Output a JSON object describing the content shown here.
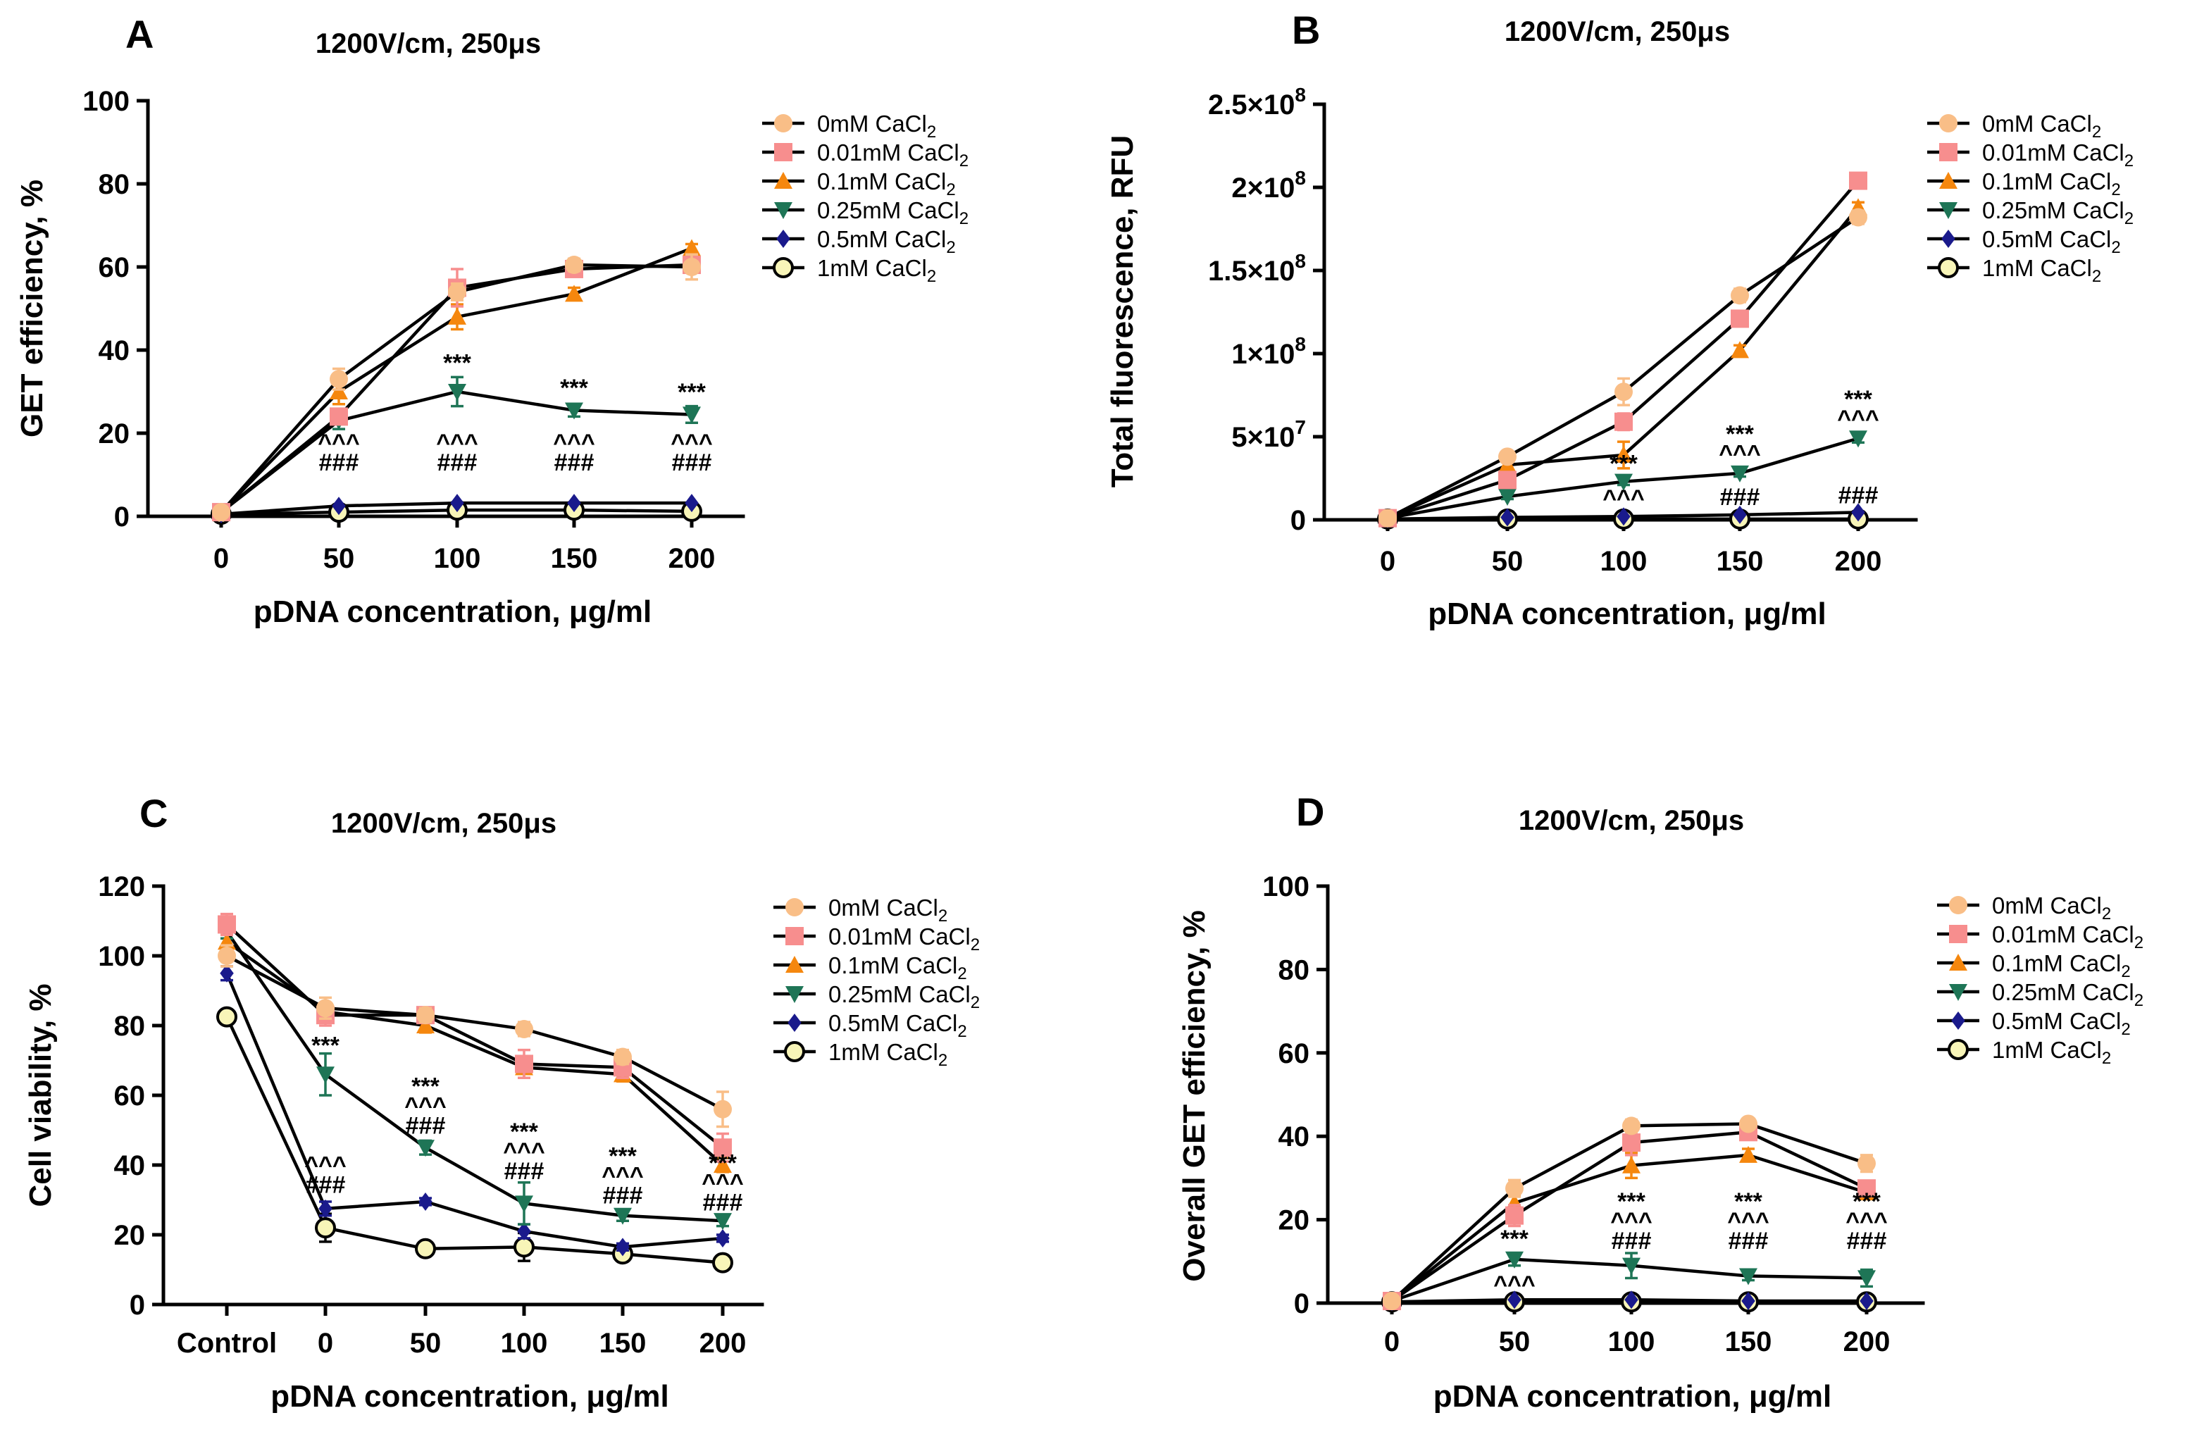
{
  "legend": [
    {
      "label": "0mM CaCl",
      "sub": "2",
      "color": "#F9BE87",
      "marker": "circle"
    },
    {
      "label": "0.01mM CaCl",
      "sub": "2",
      "color": "#F78E8E",
      "marker": "square"
    },
    {
      "label": "0.1mM CaCl",
      "sub": "2",
      "color": "#F5870E",
      "marker": "triangle-up"
    },
    {
      "label": "0.25mM CaCl",
      "sub": "2",
      "color": "#1E7556",
      "marker": "triangle-down"
    },
    {
      "label": "0.5mM CaCl",
      "sub": "2",
      "color": "#1A1A8C",
      "marker": "diamond"
    },
    {
      "label": "1mM CaCl",
      "sub": "2",
      "color": "#F8F5B8",
      "marker": "circle-open"
    }
  ],
  "chart_data": [
    {
      "panel": "A",
      "type": "line",
      "title": "1200V/cm, 250μs",
      "xlabel": "pDNA concentration, μg/ml",
      "ylabel": "GET efficiency, %",
      "categories": [
        "0",
        "50",
        "100",
        "150",
        "200"
      ],
      "yticks": [
        {
          "v": 0,
          "label": "0"
        },
        {
          "v": 20,
          "label": "20"
        },
        {
          "v": 40,
          "label": "40"
        },
        {
          "v": 60,
          "label": "60"
        },
        {
          "v": 80,
          "label": "80"
        },
        {
          "v": 100,
          "label": "100"
        }
      ],
      "ylim": [
        0,
        100
      ],
      "series": [
        {
          "name": "0mM CaCl2",
          "values": [
            1,
            33,
            54,
            60.5,
            60
          ],
          "errors": [
            0.5,
            2.5,
            2,
            1.5,
            3
          ]
        },
        {
          "name": "0.01mM CaCl2",
          "values": [
            1,
            24,
            55,
            59.5,
            60.5
          ],
          "errors": [
            0.5,
            1.5,
            4.5,
            1.5,
            1.5
          ]
        },
        {
          "name": "0.1mM CaCl2",
          "values": [
            1,
            30,
            48,
            53.5,
            64.5
          ],
          "errors": [
            0.5,
            3,
            3,
            1.5,
            1
          ]
        },
        {
          "name": "0.25mM CaCl2",
          "values": [
            1,
            23,
            30,
            25.5,
            24.5
          ],
          "errors": [
            0.5,
            2,
            3.5,
            1.5,
            2
          ]
        },
        {
          "name": "0.5mM CaCl2",
          "values": [
            0.5,
            2.5,
            3.2,
            3.2,
            3.2
          ],
          "errors": [
            0,
            0,
            0,
            0,
            0
          ]
        },
        {
          "name": "1mM CaCl2",
          "values": [
            0.5,
            1,
            1.5,
            1.5,
            1.2
          ],
          "errors": [
            0,
            0,
            0,
            0,
            0
          ]
        }
      ],
      "annotations": [
        {
          "cat": 1,
          "lines": [
            "^^^",
            "###"
          ],
          "base": 11
        },
        {
          "cat": 2,
          "lines": [
            "***"
          ],
          "base": 35
        },
        {
          "cat": 2,
          "lines": [
            "^^^",
            "###"
          ],
          "base": 11
        },
        {
          "cat": 3,
          "lines": [
            "***"
          ],
          "base": 29
        },
        {
          "cat": 3,
          "lines": [
            "^^^",
            "###"
          ],
          "base": 11
        },
        {
          "cat": 4,
          "lines": [
            "***"
          ],
          "base": 28
        },
        {
          "cat": 4,
          "lines": [
            "^^^",
            "###"
          ],
          "base": 11
        }
      ]
    },
    {
      "panel": "B",
      "type": "line",
      "title": "1200V/cm, 250μs",
      "xlabel": "pDNA concentration, μg/ml",
      "ylabel": "Total fluorescence, RFU",
      "categories": [
        "0",
        "50",
        "100",
        "150",
        "200"
      ],
      "yticks": [
        {
          "v": 0,
          "label": "0"
        },
        {
          "v": 50000000,
          "label": "5×10",
          "exp": "7"
        },
        {
          "v": 100000000,
          "label": "1×10",
          "exp": "8"
        },
        {
          "v": 150000000,
          "label": "1.5×10",
          "exp": "8"
        },
        {
          "v": 200000000,
          "label": "2×10",
          "exp": "8"
        },
        {
          "v": 250000000,
          "label": "2.5×10",
          "exp": "8"
        }
      ],
      "ylim": [
        0,
        250000000
      ],
      "series": [
        {
          "name": "0mM CaCl2",
          "values": [
            1000000,
            38000000,
            77000000,
            135000000,
            182000000
          ],
          "errors": [
            500000,
            2000000,
            8000000,
            4000000,
            4000000
          ]
        },
        {
          "name": "0.01mM CaCl2",
          "values": [
            1000000,
            24000000,
            59000000,
            121000000,
            204000000
          ],
          "errors": [
            500000,
            2000000,
            5000000,
            4000000,
            2000000
          ]
        },
        {
          "name": "0.1mM CaCl2",
          "values": [
            1000000,
            33000000,
            39000000,
            102000000,
            188000000
          ],
          "errors": [
            500000,
            2000000,
            8000000,
            3000000,
            3000000
          ]
        },
        {
          "name": "0.25mM CaCl2",
          "values": [
            1000000,
            14000000,
            23000000,
            28000000,
            49000000
          ],
          "errors": [
            500000,
            1500000,
            2000000,
            2000000,
            2500000
          ]
        },
        {
          "name": "0.5mM CaCl2",
          "values": [
            500000,
            1500000,
            2000000,
            3000000,
            4500000
          ],
          "errors": [
            0,
            0,
            0,
            0,
            0
          ]
        },
        {
          "name": "1mM CaCl2",
          "values": [
            500000,
            500000,
            500000,
            500000,
            500000
          ],
          "errors": [
            0,
            0,
            0,
            0,
            0
          ]
        }
      ],
      "annotations": [
        {
          "cat": 2,
          "lines": [
            "***"
          ],
          "base": 29000000
        },
        {
          "cat": 2,
          "lines": [
            "^^^"
          ],
          "base": 8000000
        },
        {
          "cat": 3,
          "lines": [
            "***",
            "^^^"
          ],
          "base": 35000000
        },
        {
          "cat": 3,
          "lines": [
            "###"
          ],
          "base": 9000000
        },
        {
          "cat": 4,
          "lines": [
            "***",
            "^^^"
          ],
          "base": 56000000
        },
        {
          "cat": 4,
          "lines": [
            "###"
          ],
          "base": 10000000
        }
      ]
    },
    {
      "panel": "C",
      "type": "line",
      "title": "1200V/cm, 250μs",
      "xlabel": "pDNA concentration, μg/ml",
      "ylabel": "Cell viability, %",
      "categories": [
        "Control",
        "0",
        "50",
        "100",
        "150",
        "200"
      ],
      "yticks": [
        {
          "v": 0,
          "label": "0"
        },
        {
          "v": 20,
          "label": "20"
        },
        {
          "v": 40,
          "label": "40"
        },
        {
          "v": 60,
          "label": "60"
        },
        {
          "v": 80,
          "label": "80"
        },
        {
          "v": 100,
          "label": "100"
        },
        {
          "v": 120,
          "label": "120"
        }
      ],
      "ylim": [
        0,
        120
      ],
      "series": [
        {
          "name": "0mM CaCl2",
          "values": [
            100,
            85,
            83,
            79,
            71,
            56
          ],
          "errors": [
            3,
            3,
            2,
            2,
            2,
            5
          ]
        },
        {
          "name": "0.01mM CaCl2",
          "values": [
            109,
            83,
            83,
            69,
            68,
            45
          ],
          "errors": [
            3,
            3,
            2,
            4,
            3,
            4
          ]
        },
        {
          "name": "0.1mM CaCl2",
          "values": [
            104,
            84,
            80,
            68,
            66,
            40
          ],
          "errors": [
            2,
            2,
            2,
            3,
            2,
            2
          ]
        },
        {
          "name": "0.25mM CaCl2",
          "values": [
            107,
            66,
            45,
            29,
            25.5,
            24
          ],
          "errors": [
            2,
            6,
            2,
            6,
            1.5,
            1.5
          ]
        },
        {
          "name": "0.5mM CaCl2",
          "values": [
            95,
            27.5,
            29.5,
            21,
            16.5,
            19
          ],
          "errors": [
            2,
            2,
            1,
            2,
            1,
            1
          ]
        },
        {
          "name": "1mM CaCl2",
          "values": [
            82.5,
            22,
            16,
            16.5,
            14.5,
            12
          ],
          "errors": [
            2,
            4,
            1,
            4,
            2,
            1
          ]
        }
      ],
      "annotations": [
        {
          "cat": 1,
          "lines": [
            "***"
          ],
          "base": 72
        },
        {
          "cat": 1,
          "lines": [
            "^^^",
            "###"
          ],
          "base": 32
        },
        {
          "cat": 2,
          "lines": [
            "***",
            "^^^",
            "###"
          ],
          "base": 49
        },
        {
          "cat": 3,
          "lines": [
            "***",
            "^^^",
            "###"
          ],
          "base": 36
        },
        {
          "cat": 4,
          "lines": [
            "***",
            "^^^",
            "###"
          ],
          "base": 29
        },
        {
          "cat": 5,
          "lines": [
            "***",
            "^^^",
            "###"
          ],
          "base": 27
        }
      ]
    },
    {
      "panel": "D",
      "type": "line",
      "title": "1200V/cm, 250μs",
      "xlabel": "pDNA concentration, μg/ml",
      "ylabel": "Overall GET efficiency, %",
      "categories": [
        "0",
        "50",
        "100",
        "150",
        "200"
      ],
      "yticks": [
        {
          "v": 0,
          "label": "0"
        },
        {
          "v": 20,
          "label": "20"
        },
        {
          "v": 40,
          "label": "40"
        },
        {
          "v": 60,
          "label": "60"
        },
        {
          "v": 80,
          "label": "80"
        },
        {
          "v": 100,
          "label": "100"
        }
      ],
      "ylim": [
        0,
        100
      ],
      "series": [
        {
          "name": "0mM CaCl2",
          "values": [
            0.5,
            27.5,
            42.5,
            43,
            33.5
          ],
          "errors": [
            0.3,
            2,
            1.5,
            1,
            2
          ]
        },
        {
          "name": "0.01mM CaCl2",
          "values": [
            0.5,
            21,
            38.5,
            41,
            27.5
          ],
          "errors": [
            0.3,
            2.5,
            3,
            1.5,
            1.5
          ]
        },
        {
          "name": "0.1mM CaCl2",
          "values": [
            0.5,
            24,
            33,
            35.5,
            26.5
          ],
          "errors": [
            0.3,
            2,
            3,
            1.5,
            1
          ]
        },
        {
          "name": "0.25mM CaCl2",
          "values": [
            0.5,
            10.5,
            9,
            6.5,
            6
          ],
          "errors": [
            0.3,
            1.5,
            3,
            1,
            2
          ]
        },
        {
          "name": "0.5mM CaCl2",
          "values": [
            0.3,
            0.8,
            0.8,
            0.5,
            0.5
          ],
          "errors": [
            0,
            0,
            0,
            0,
            0
          ]
        },
        {
          "name": "1mM CaCl2",
          "values": [
            0.3,
            0.3,
            0.3,
            0.3,
            0.3
          ],
          "errors": [
            0,
            0,
            0,
            0,
            0
          ]
        }
      ],
      "annotations": [
        {
          "cat": 1,
          "lines": [
            "***"
          ],
          "base": 13.5
        },
        {
          "cat": 1,
          "lines": [
            "^^^"
          ],
          "base": 2.5
        },
        {
          "cat": 2,
          "lines": [
            "***",
            "^^^",
            "###"
          ],
          "base": 13
        },
        {
          "cat": 3,
          "lines": [
            "***",
            "^^^",
            "###"
          ],
          "base": 13
        },
        {
          "cat": 4,
          "lines": [
            "***",
            "^^^",
            "###"
          ],
          "base": 13
        }
      ]
    }
  ]
}
